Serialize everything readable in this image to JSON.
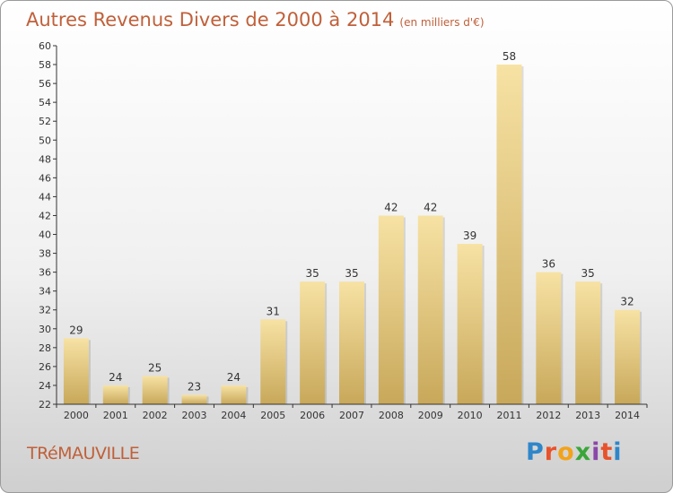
{
  "title": "Autres Revenus Divers de 2000 à 2014",
  "subtitle": "(en milliers d'€)",
  "commune": "TRéMAUVILLE",
  "logo": {
    "text": "Proxiti",
    "letter_colors": [
      "#2e86c9",
      "#e8522a",
      "#f2a31b",
      "#3aa63a",
      "#8a46a8",
      "#e8522a",
      "#2e86c9"
    ]
  },
  "colors": {
    "title": "#c0603a",
    "bar_light": "#f7e2a4",
    "bar_dark": "#c8a85a"
  },
  "chart_data": {
    "type": "bar",
    "categories": [
      "2000",
      "2001",
      "2002",
      "2003",
      "2004",
      "2005",
      "2006",
      "2007",
      "2008",
      "2009",
      "2010",
      "2011",
      "2012",
      "2013",
      "2014"
    ],
    "values": [
      29,
      24,
      25,
      23,
      24,
      31,
      35,
      35,
      42,
      42,
      39,
      58,
      36,
      35,
      32
    ],
    "ylim": [
      22,
      60
    ],
    "yticks": [
      22,
      24,
      26,
      28,
      30,
      32,
      34,
      36,
      38,
      40,
      42,
      44,
      46,
      48,
      50,
      52,
      54,
      56,
      58,
      60
    ],
    "xlabel": "",
    "ylabel": "",
    "grid": false
  }
}
